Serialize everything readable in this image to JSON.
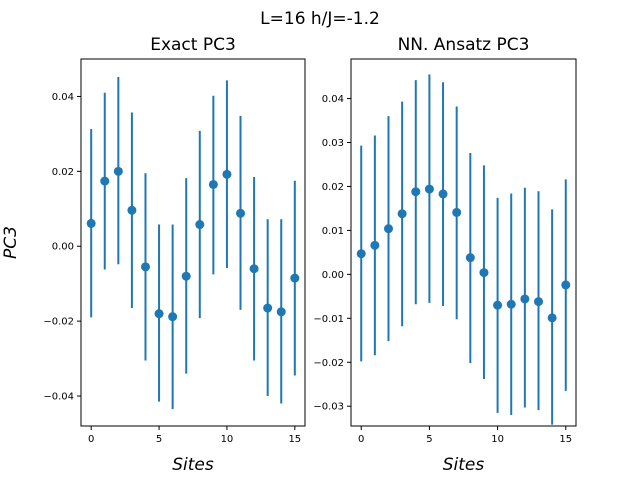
{
  "suptitle": "L=16 h/J=-1.2",
  "chart_data": [
    {
      "type": "scatter",
      "title": "Exact PC3",
      "xlabel": "Sites",
      "ylabel": "PC3",
      "color": "#1f77b4",
      "xlim": [
        -0.75,
        15.75
      ],
      "ylim": [
        -0.048,
        0.05
      ],
      "xticks": [
        0,
        5,
        10,
        15
      ],
      "xtick_labels": [
        "0",
        "5",
        "10",
        "15"
      ],
      "yticks": [
        -0.04,
        -0.02,
        0.0,
        0.02,
        0.04
      ],
      "ytick_labels": [
        "−0.04",
        "−0.02",
        "0.00",
        "0.02",
        "0.04"
      ],
      "x": [
        0,
        1,
        2,
        3,
        4,
        5,
        6,
        7,
        8,
        9,
        10,
        11,
        12,
        13,
        14,
        15
      ],
      "y": [
        0.0061,
        0.0174,
        0.02,
        0.0096,
        -0.0055,
        -0.018,
        -0.0188,
        -0.008,
        0.0058,
        0.0165,
        0.0192,
        0.0088,
        -0.006,
        -0.0165,
        -0.0175,
        -0.0085
      ],
      "error_lower": [
        -0.019,
        -0.0062,
        -0.0048,
        -0.0165,
        -0.0305,
        -0.0415,
        -0.0435,
        -0.034,
        -0.0192,
        -0.0075,
        -0.0058,
        -0.017,
        -0.0305,
        -0.04,
        -0.042,
        -0.0345
      ],
      "error_upper": [
        0.0313,
        0.041,
        0.0452,
        0.0357,
        0.0195,
        0.0058,
        0.0058,
        0.0182,
        0.0308,
        0.0402,
        0.0443,
        0.0348,
        0.0185,
        0.0072,
        0.0072,
        0.0175
      ]
    },
    {
      "type": "scatter",
      "title": "NN. Ansatz PC3",
      "xlabel": "Sites",
      "ylabel": "",
      "color": "#1f77b4",
      "xlim": [
        -0.75,
        15.75
      ],
      "ylim": [
        -0.0345,
        0.049
      ],
      "xticks": [
        0,
        5,
        10,
        15
      ],
      "xtick_labels": [
        "0",
        "5",
        "10",
        "15"
      ],
      "yticks": [
        -0.03,
        -0.02,
        -0.01,
        0.0,
        0.01,
        0.02,
        0.03,
        0.04
      ],
      "ytick_labels": [
        "−0.03",
        "−0.02",
        "−0.01",
        "0.00",
        "0.01",
        "0.02",
        "0.03",
        "0.04"
      ],
      "x": [
        0,
        1,
        2,
        3,
        4,
        5,
        6,
        7,
        8,
        9,
        10,
        11,
        12,
        13,
        14,
        15
      ],
      "y": [
        0.0047,
        0.0066,
        0.0104,
        0.0138,
        0.0188,
        0.0194,
        0.0183,
        0.0141,
        0.0038,
        0.0004,
        -0.007,
        -0.0068,
        -0.0056,
        -0.0062,
        -0.0099,
        -0.0024
      ],
      "error_lower": [
        -0.0198,
        -0.0184,
        -0.0152,
        -0.0118,
        -0.0068,
        -0.0065,
        -0.0072,
        -0.0102,
        -0.0202,
        -0.0238,
        -0.0315,
        -0.032,
        -0.0303,
        -0.0309,
        -0.0342,
        -0.0265
      ],
      "error_upper": [
        0.0293,
        0.0316,
        0.036,
        0.0393,
        0.0442,
        0.0455,
        0.0437,
        0.0382,
        0.0276,
        0.0248,
        0.0174,
        0.0184,
        0.0197,
        0.0189,
        0.0148,
        0.0216
      ]
    }
  ]
}
